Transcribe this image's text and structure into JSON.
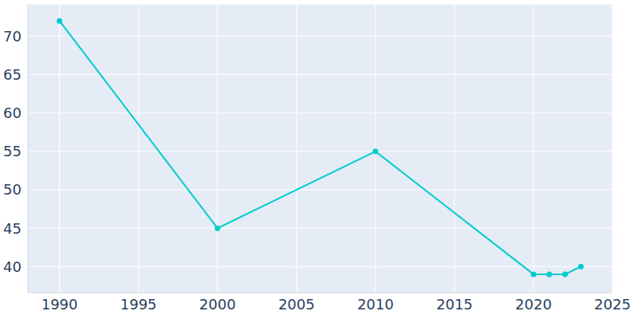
{
  "chart_data": {
    "type": "line",
    "x": [
      1990,
      2000,
      2010,
      2020,
      2021,
      2022,
      2023
    ],
    "values": [
      72,
      45,
      55,
      39,
      39,
      39,
      40
    ],
    "color": "#00cccc",
    "xlim": [
      1988,
      2025
    ],
    "ylim": [
      36.6,
      74.2
    ],
    "xticks": [
      1990,
      1995,
      2000,
      2005,
      2010,
      2015,
      2020,
      2025
    ],
    "yticks": [
      40,
      45,
      50,
      55,
      60,
      65,
      70
    ],
    "grid": true,
    "marker": "circle"
  }
}
